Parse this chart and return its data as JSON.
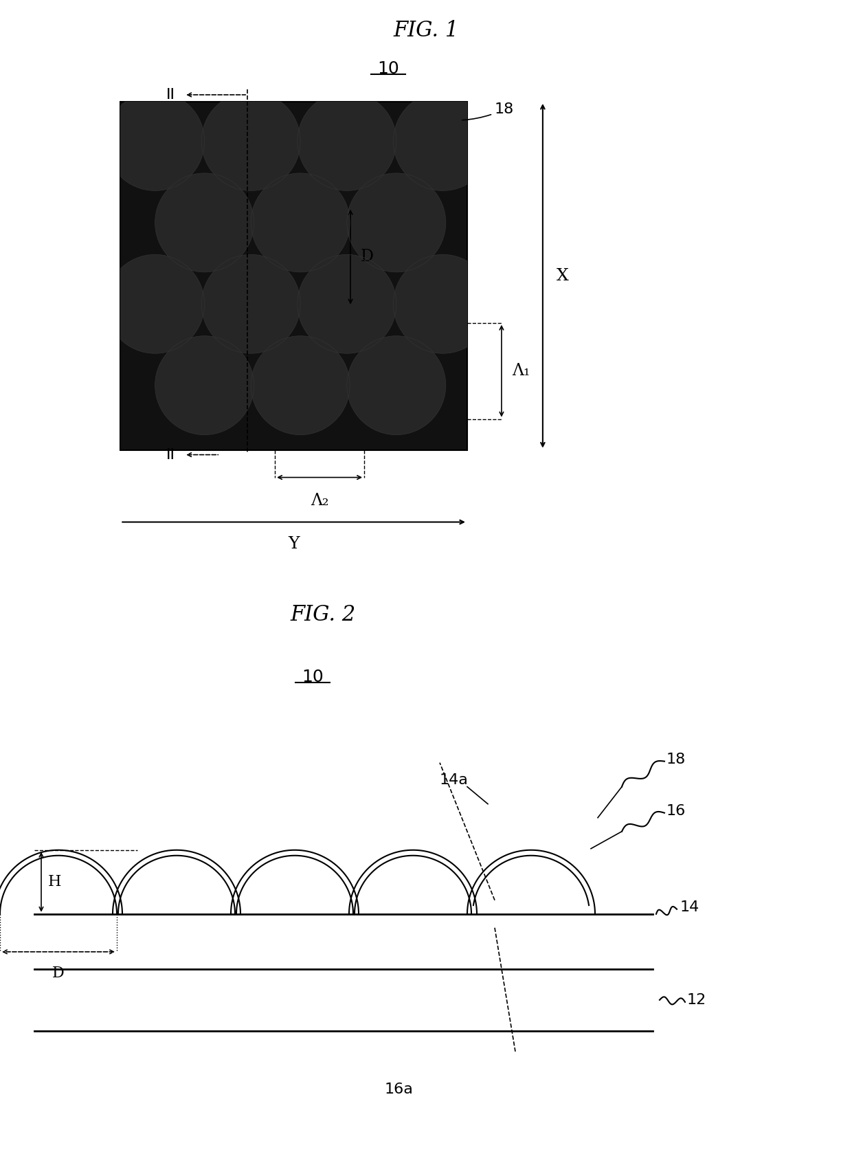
{
  "fig1_title": "FIG. 1",
  "fig2_title": "FIG. 2",
  "label_10_fig1": "10",
  "label_10_fig2": "10",
  "label_II_top": "II",
  "label_II_bot": "II",
  "label_18_fig1": "18",
  "label_D_fig1": "D",
  "label_Lambda1": "Λ₁",
  "label_Lambda2": "Λ₂",
  "label_X": "X",
  "label_Y": "Y",
  "label_H": "H",
  "label_D_fig2": "D",
  "label_14a": "14a",
  "label_18_fig2": "18",
  "label_16": "16",
  "label_14": "14",
  "label_12": "12",
  "label_16a": "16a",
  "bg_color": "#ffffff",
  "sphere_dark": "#1a1a1a",
  "sphere_light": "#e8e8e8",
  "line_color": "#000000"
}
